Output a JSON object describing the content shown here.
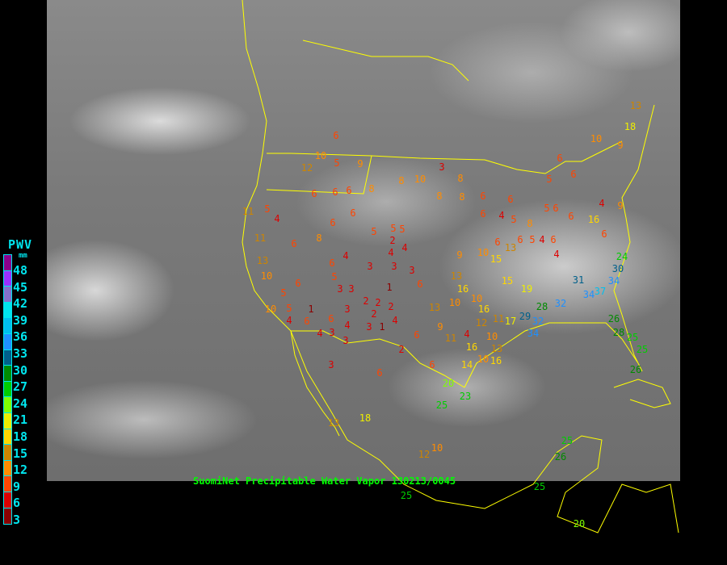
{
  "caption": "SuomiNet Precipitable Water Vapor 130213/0045",
  "legend": {
    "title": "PWV",
    "unit": "mm",
    "labels": [
      "48",
      "45",
      "42",
      "39",
      "36",
      "33",
      "30",
      "27",
      "24",
      "21",
      "18",
      "15",
      "12",
      "9",
      "6",
      "3"
    ],
    "colors": [
      "#8b008b",
      "#9b30ff",
      "#8470cc",
      "#00e5ee",
      "#00bfee",
      "#1e90ff",
      "#00608b",
      "#008b00",
      "#00cd00",
      "#7fff00",
      "#eeee00",
      "#ffd700",
      "#cd8500",
      "#ff8c00",
      "#ff4500",
      "#dd0000",
      "#8b0000"
    ]
  },
  "map_colors": {
    "borders": "#ffff00",
    "caption": "#00ff00"
  },
  "stations": [
    6,
    10,
    5,
    9,
    12,
    8,
    10,
    3,
    8,
    8,
    8,
    6,
    6,
    6,
    4,
    5,
    5,
    6,
    6,
    5,
    6,
    6,
    10,
    9,
    13,
    18,
    4,
    9,
    6,
    16,
    6,
    4,
    6,
    8,
    6,
    6,
    8,
    6,
    5,
    4,
    6,
    8,
    6,
    6,
    5,
    5,
    2,
    5,
    4,
    4,
    3,
    3,
    4,
    6,
    5,
    3,
    3,
    2,
    2,
    1,
    2,
    2,
    4,
    3,
    1,
    3,
    6,
    1,
    3,
    4,
    3,
    6,
    6,
    5,
    4,
    6,
    4,
    3,
    6,
    3,
    2,
    6,
    6,
    9,
    11,
    4,
    10,
    16,
    12,
    10,
    13,
    11,
    17,
    15,
    16,
    13,
    13,
    10,
    10,
    16,
    9,
    10,
    15,
    13,
    6,
    5,
    4,
    11,
    11,
    10,
    10,
    5,
    13,
    19,
    28,
    29,
    32,
    34,
    32,
    31,
    34,
    37,
    34,
    30,
    24,
    26,
    28,
    25,
    25,
    26,
    25,
    23,
    20,
    18,
    13,
    12,
    10,
    25,
    26,
    25,
    20,
    25,
    14,
    16
  ]
}
